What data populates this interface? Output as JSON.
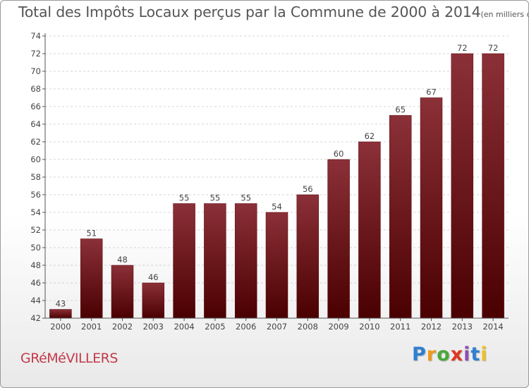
{
  "header": {
    "title": "Total des Impôts Locaux perçus par la Commune de 2000 à 2014",
    "unit": "(en milliers d'€)"
  },
  "footer": {
    "commune": "GRéMéVILLERS",
    "logo": "Proxiti",
    "logo_colors": [
      "#2f7fd0",
      "#f09a1a",
      "#49a83a",
      "#e0361f",
      "#8b4fb5",
      "#2f7fd0",
      "#f0c020"
    ]
  },
  "chart_data": {
    "type": "bar",
    "title": "Total des Impôts Locaux perçus par la Commune de 2000 à 2014",
    "xlabel": "",
    "ylabel": "",
    "categories": [
      "2000",
      "2001",
      "2002",
      "2003",
      "2004",
      "2005",
      "2006",
      "2007",
      "2008",
      "2009",
      "2010",
      "2011",
      "2012",
      "2013",
      "2014"
    ],
    "values": [
      43,
      51,
      48,
      46,
      55,
      55,
      55,
      54,
      56,
      60,
      62,
      65,
      67,
      72,
      72
    ],
    "ylim": [
      42,
      74
    ],
    "yticks": [
      42,
      44,
      46,
      48,
      50,
      52,
      54,
      56,
      58,
      60,
      62,
      64,
      66,
      68,
      70,
      72,
      74
    ],
    "bar_color_top": "#8b3038",
    "bar_color_bottom": "#4a0000",
    "grid": true
  }
}
